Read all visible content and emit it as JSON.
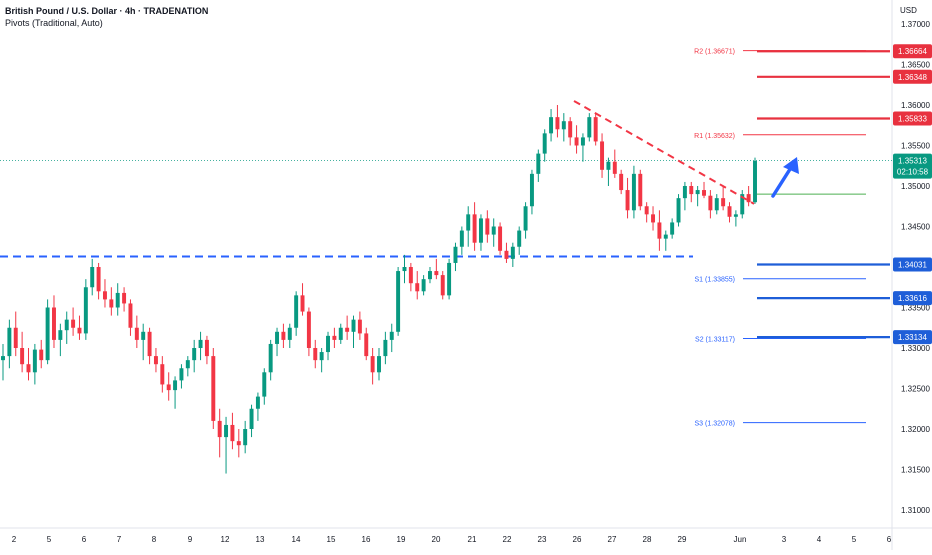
{
  "header": {
    "symbol": "British Pound / U.S. Dollar · 4h · TRADENATION",
    "indicator": "Pivots (Traditional, Auto)"
  },
  "axis": {
    "currency": "USD"
  },
  "chart_data": {
    "type": "candlestick",
    "y_ticks": [
      "1.37000",
      "1.36500",
      "1.36000",
      "1.35500",
      "1.35000",
      "1.34500",
      "1.34000",
      "1.33500",
      "1.33000",
      "1.32500",
      "1.32000",
      "1.31500",
      "1.31000"
    ],
    "ylim": [
      1.307,
      1.3735
    ],
    "x_ticks": [
      "2",
      "5",
      "6",
      "7",
      "8",
      "9",
      "12",
      "13",
      "14",
      "15",
      "16",
      "19",
      "20",
      "21",
      "22",
      "23",
      "26",
      "27",
      "28",
      "29",
      "Jun",
      "3",
      "4",
      "5",
      "6"
    ],
    "pivot_levels": [
      {
        "label": "R2 (1.36671)",
        "value": 1.36671,
        "color": "#f23645"
      },
      {
        "label": "R1 (1.35632)",
        "value": 1.35632,
        "color": "#f23645"
      },
      {
        "label": "S1 (1.33855)",
        "value": 1.33855,
        "color": "#2962ff"
      },
      {
        "label": "S2 (1.33117)",
        "value": 1.33117,
        "color": "#2962ff"
      },
      {
        "label": "S3 (1.32078)",
        "value": 1.32078,
        "color": "#2962ff"
      }
    ],
    "price_levels": [
      {
        "label": "1.36664",
        "value": 1.36664,
        "color": "#e8313f"
      },
      {
        "label": "1.36348",
        "value": 1.36348,
        "color": "#e8313f"
      },
      {
        "label": "1.35833",
        "value": 1.35833,
        "color": "#e8313f"
      },
      {
        "label": "1.34031",
        "value": 1.34031,
        "color": "#1e5ed8"
      },
      {
        "label": "1.33616",
        "value": 1.33616,
        "color": "#1e5ed8"
      },
      {
        "label": "1.33134",
        "value": 1.33134,
        "color": "#1e5ed8"
      }
    ],
    "current_price": {
      "label": "1.35313",
      "countdown": "02:10:58",
      "value": 1.35313,
      "color": "#089981"
    },
    "pivot_point": 1.349,
    "support_line": 1.3413,
    "candle_colors": {
      "up": "#089981",
      "down": "#f23645"
    },
    "candles": [
      [
        1.3285,
        1.3305,
        1.326,
        1.329
      ],
      [
        1.329,
        1.3335,
        1.3275,
        1.3325
      ],
      [
        1.3325,
        1.3345,
        1.329,
        1.33
      ],
      [
        1.33,
        1.332,
        1.327,
        1.328
      ],
      [
        1.328,
        1.33,
        1.326,
        1.327
      ],
      [
        1.327,
        1.3305,
        1.3255,
        1.3298
      ],
      [
        1.3298,
        1.331,
        1.3275,
        1.3285
      ],
      [
        1.3285,
        1.336,
        1.328,
        1.335
      ],
      [
        1.335,
        1.3365,
        1.33,
        1.331
      ],
      [
        1.331,
        1.333,
        1.329,
        1.3322
      ],
      [
        1.3322,
        1.3345,
        1.3305,
        1.3335
      ],
      [
        1.3335,
        1.335,
        1.3315,
        1.3325
      ],
      [
        1.3325,
        1.334,
        1.331,
        1.3318
      ],
      [
        1.3318,
        1.3385,
        1.331,
        1.3375
      ],
      [
        1.3375,
        1.341,
        1.3365,
        1.34
      ],
      [
        1.34,
        1.3405,
        1.336,
        1.337
      ],
      [
        1.337,
        1.3385,
        1.335,
        1.336
      ],
      [
        1.336,
        1.3375,
        1.334,
        1.335
      ],
      [
        1.335,
        1.338,
        1.334,
        1.3368
      ],
      [
        1.3368,
        1.3375,
        1.3345,
        1.3355
      ],
      [
        1.3355,
        1.336,
        1.3315,
        1.3325
      ],
      [
        1.3325,
        1.334,
        1.33,
        1.331
      ],
      [
        1.331,
        1.333,
        1.3285,
        1.332
      ],
      [
        1.332,
        1.3325,
        1.328,
        1.329
      ],
      [
        1.329,
        1.33,
        1.327,
        1.328
      ],
      [
        1.328,
        1.329,
        1.3245,
        1.3255
      ],
      [
        1.3255,
        1.327,
        1.3235,
        1.3248
      ],
      [
        1.3248,
        1.3265,
        1.3225,
        1.326
      ],
      [
        1.326,
        1.328,
        1.325,
        1.3275
      ],
      [
        1.3275,
        1.329,
        1.3265,
        1.3285
      ],
      [
        1.3285,
        1.331,
        1.327,
        1.33
      ],
      [
        1.33,
        1.332,
        1.3285,
        1.331
      ],
      [
        1.331,
        1.3315,
        1.328,
        1.329
      ],
      [
        1.329,
        1.33,
        1.32,
        1.321
      ],
      [
        1.321,
        1.3225,
        1.3165,
        1.319
      ],
      [
        1.319,
        1.3215,
        1.3145,
        1.3205
      ],
      [
        1.3205,
        1.322,
        1.3175,
        1.3185
      ],
      [
        1.3185,
        1.32,
        1.3165,
        1.318
      ],
      [
        1.318,
        1.321,
        1.317,
        1.32
      ],
      [
        1.32,
        1.323,
        1.319,
        1.3225
      ],
      [
        1.3225,
        1.3245,
        1.321,
        1.324
      ],
      [
        1.324,
        1.3275,
        1.323,
        1.327
      ],
      [
        1.327,
        1.331,
        1.326,
        1.3305
      ],
      [
        1.3305,
        1.3325,
        1.329,
        1.332
      ],
      [
        1.332,
        1.333,
        1.33,
        1.331
      ],
      [
        1.331,
        1.333,
        1.33,
        1.3325
      ],
      [
        1.3325,
        1.337,
        1.3315,
        1.3365
      ],
      [
        1.3365,
        1.338,
        1.334,
        1.3345
      ],
      [
        1.3345,
        1.335,
        1.329,
        1.33
      ],
      [
        1.33,
        1.331,
        1.3275,
        1.3285
      ],
      [
        1.3285,
        1.33,
        1.327,
        1.3295
      ],
      [
        1.3295,
        1.332,
        1.3285,
        1.3315
      ],
      [
        1.3315,
        1.3325,
        1.33,
        1.331
      ],
      [
        1.331,
        1.333,
        1.3305,
        1.3325
      ],
      [
        1.3325,
        1.334,
        1.331,
        1.332
      ],
      [
        1.332,
        1.334,
        1.33,
        1.3335
      ],
      [
        1.3335,
        1.3345,
        1.331,
        1.3318
      ],
      [
        1.3318,
        1.3325,
        1.3285,
        1.329
      ],
      [
        1.329,
        1.33,
        1.3255,
        1.327
      ],
      [
        1.327,
        1.33,
        1.326,
        1.329
      ],
      [
        1.329,
        1.332,
        1.328,
        1.331
      ],
      [
        1.331,
        1.333,
        1.3295,
        1.332
      ],
      [
        1.332,
        1.34,
        1.3315,
        1.3395
      ],
      [
        1.3395,
        1.3415,
        1.338,
        1.34
      ],
      [
        1.34,
        1.3405,
        1.337,
        1.338
      ],
      [
        1.338,
        1.3395,
        1.336,
        1.337
      ],
      [
        1.337,
        1.339,
        1.3365,
        1.3385
      ],
      [
        1.3385,
        1.34,
        1.338,
        1.3395
      ],
      [
        1.3395,
        1.341,
        1.3385,
        1.339
      ],
      [
        1.339,
        1.3395,
        1.336,
        1.3365
      ],
      [
        1.3365,
        1.341,
        1.336,
        1.3405
      ],
      [
        1.3405,
        1.343,
        1.3395,
        1.3425
      ],
      [
        1.3425,
        1.345,
        1.3415,
        1.3445
      ],
      [
        1.3445,
        1.3475,
        1.3425,
        1.3465
      ],
      [
        1.3465,
        1.348,
        1.342,
        1.343
      ],
      [
        1.343,
        1.3465,
        1.342,
        1.346
      ],
      [
        1.346,
        1.347,
        1.343,
        1.344
      ],
      [
        1.344,
        1.346,
        1.3425,
        1.345
      ],
      [
        1.345,
        1.3455,
        1.3415,
        1.342
      ],
      [
        1.342,
        1.343,
        1.3405,
        1.341
      ],
      [
        1.341,
        1.343,
        1.34,
        1.3425
      ],
      [
        1.3425,
        1.345,
        1.3415,
        1.3445
      ],
      [
        1.3445,
        1.348,
        1.3435,
        1.3475
      ],
      [
        1.3475,
        1.352,
        1.3465,
        1.3515
      ],
      [
        1.3515,
        1.3545,
        1.3505,
        1.354
      ],
      [
        1.354,
        1.357,
        1.353,
        1.3565
      ],
      [
        1.3565,
        1.3595,
        1.3555,
        1.3585
      ],
      [
        1.3585,
        1.36,
        1.356,
        1.357
      ],
      [
        1.357,
        1.359,
        1.3555,
        1.358
      ],
      [
        1.358,
        1.3585,
        1.355,
        1.356
      ],
      [
        1.356,
        1.3575,
        1.354,
        1.355
      ],
      [
        1.355,
        1.3565,
        1.353,
        1.356
      ],
      [
        1.356,
        1.359,
        1.3555,
        1.3585
      ],
      [
        1.3585,
        1.359,
        1.355,
        1.3555
      ],
      [
        1.3555,
        1.3565,
        1.351,
        1.352
      ],
      [
        1.352,
        1.3535,
        1.35,
        1.353
      ],
      [
        1.353,
        1.3545,
        1.351,
        1.3515
      ],
      [
        1.3515,
        1.352,
        1.349,
        1.3495
      ],
      [
        1.3495,
        1.351,
        1.346,
        1.347
      ],
      [
        1.347,
        1.3525,
        1.346,
        1.3515
      ],
      [
        1.3515,
        1.352,
        1.347,
        1.3475
      ],
      [
        1.3475,
        1.348,
        1.3455,
        1.3465
      ],
      [
        1.3465,
        1.3475,
        1.3445,
        1.3455
      ],
      [
        1.3455,
        1.347,
        1.342,
        1.3435
      ],
      [
        1.3435,
        1.3445,
        1.342,
        1.344
      ],
      [
        1.344,
        1.346,
        1.3435,
        1.3455
      ],
      [
        1.3455,
        1.349,
        1.345,
        1.3485
      ],
      [
        1.3485,
        1.3505,
        1.347,
        1.35
      ],
      [
        1.35,
        1.3505,
        1.348,
        1.349
      ],
      [
        1.349,
        1.35,
        1.3475,
        1.3495
      ],
      [
        1.3495,
        1.3505,
        1.3485,
        1.3488
      ],
      [
        1.3488,
        1.3495,
        1.346,
        1.347
      ],
      [
        1.347,
        1.349,
        1.3465,
        1.3485
      ],
      [
        1.3485,
        1.35,
        1.347,
        1.3475
      ],
      [
        1.3475,
        1.348,
        1.3455,
        1.3462
      ],
      [
        1.3462,
        1.347,
        1.345,
        1.3465
      ],
      [
        1.3465,
        1.3495,
        1.346,
        1.349
      ],
      [
        1.349,
        1.35,
        1.3475,
        1.348
      ],
      [
        1.348,
        1.3535,
        1.3478,
        1.3531
      ]
    ]
  }
}
